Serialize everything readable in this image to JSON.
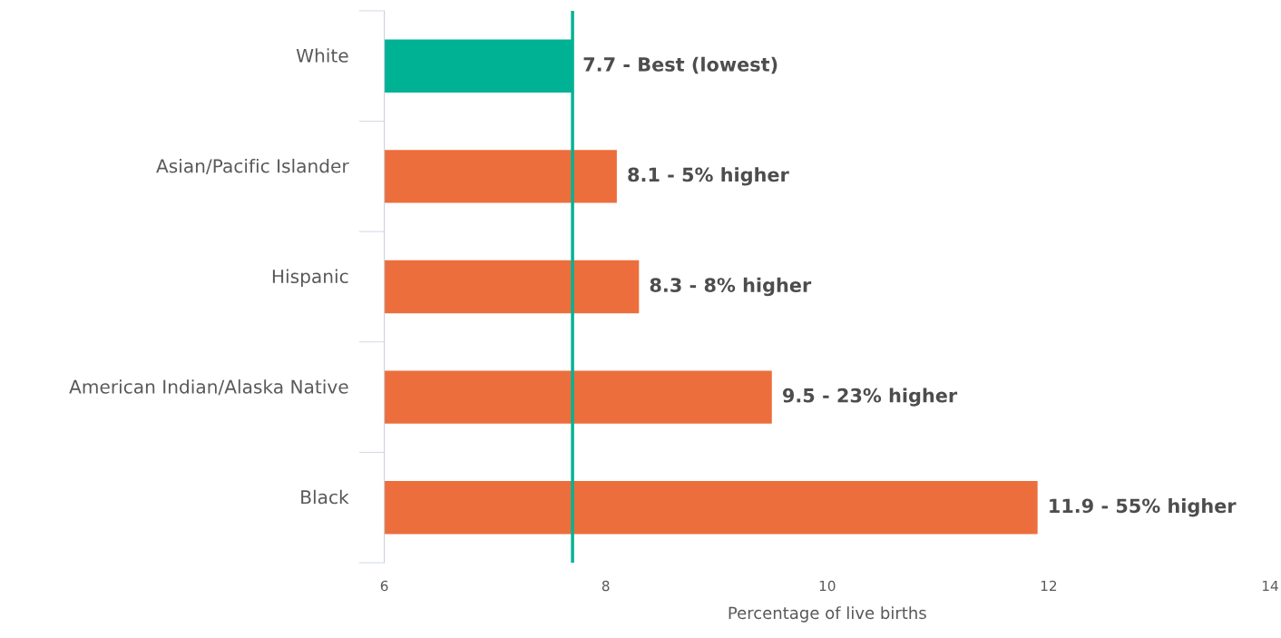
{
  "chart_data": {
    "type": "bar",
    "orientation": "horizontal",
    "categories": [
      "White",
      "Asian/Pacific Islander",
      "Hispanic",
      "American Indian/Alaska Native",
      "Black"
    ],
    "values": [
      7.7,
      8.1,
      8.3,
      9.5,
      11.9
    ],
    "colors": [
      "#00b294",
      "#ec6e3c",
      "#ec6e3c",
      "#ec6e3c",
      "#ec6e3c"
    ],
    "value_labels": [
      "7.7 - Best (lowest)",
      "8.1 - 5% higher",
      "8.3 - 8% higher",
      "9.5 - 23% higher",
      "11.9 - 55% higher"
    ],
    "xlim": [
      6,
      14
    ],
    "xticks": [
      6,
      8,
      10,
      12,
      14
    ],
    "xlabel": "Percentage of live births",
    "ref_lines": [
      {
        "axis": "x",
        "value": 7.7,
        "color": "#00b294"
      }
    ]
  }
}
